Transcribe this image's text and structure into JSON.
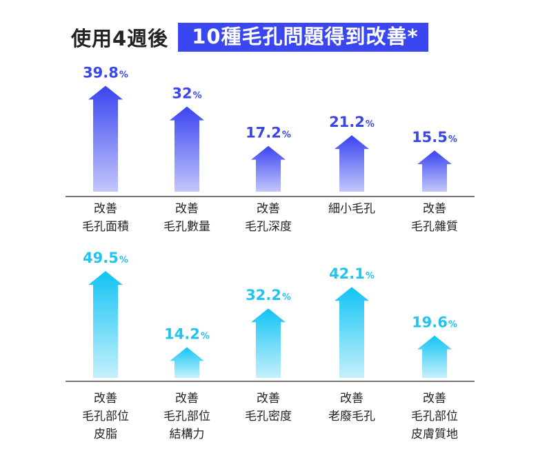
{
  "title": {
    "lead": "使用4週後",
    "highlight": "10種毛孔問題得到改善*"
  },
  "colors": {
    "row1_top": "#3a44f0",
    "row1_bottom": "#c3c7fb",
    "row2_top": "#11c4f4",
    "row2_bottom": "#c6f0fc",
    "row1_value": "#3a47e8",
    "row2_value": "#22c4ef"
  },
  "chart_data": [
    {
      "type": "bar",
      "unit": "%",
      "categories": [
        "改善\n毛孔面積",
        "改善\n毛孔數量",
        "改善\n毛孔深度",
        "細小毛孔",
        "改善\n毛孔雜質"
      ],
      "values": [
        39.8,
        32,
        17.2,
        21.2,
        15.5
      ],
      "value_labels": [
        "39.8",
        "32",
        "17.2",
        "21.2",
        "15.5"
      ]
    },
    {
      "type": "bar",
      "unit": "%",
      "categories": [
        "改善\n毛孔部位\n皮脂",
        "改善\n毛孔部位\n結構力",
        "改善\n毛孔密度",
        "改善\n老廢毛孔",
        "改善\n毛孔部位\n皮膚質地"
      ],
      "values": [
        49.5,
        14.2,
        32.2,
        42.1,
        19.6
      ],
      "value_labels": [
        "49.5",
        "14.2",
        "32.2",
        "42.1",
        "19.6"
      ]
    }
  ]
}
